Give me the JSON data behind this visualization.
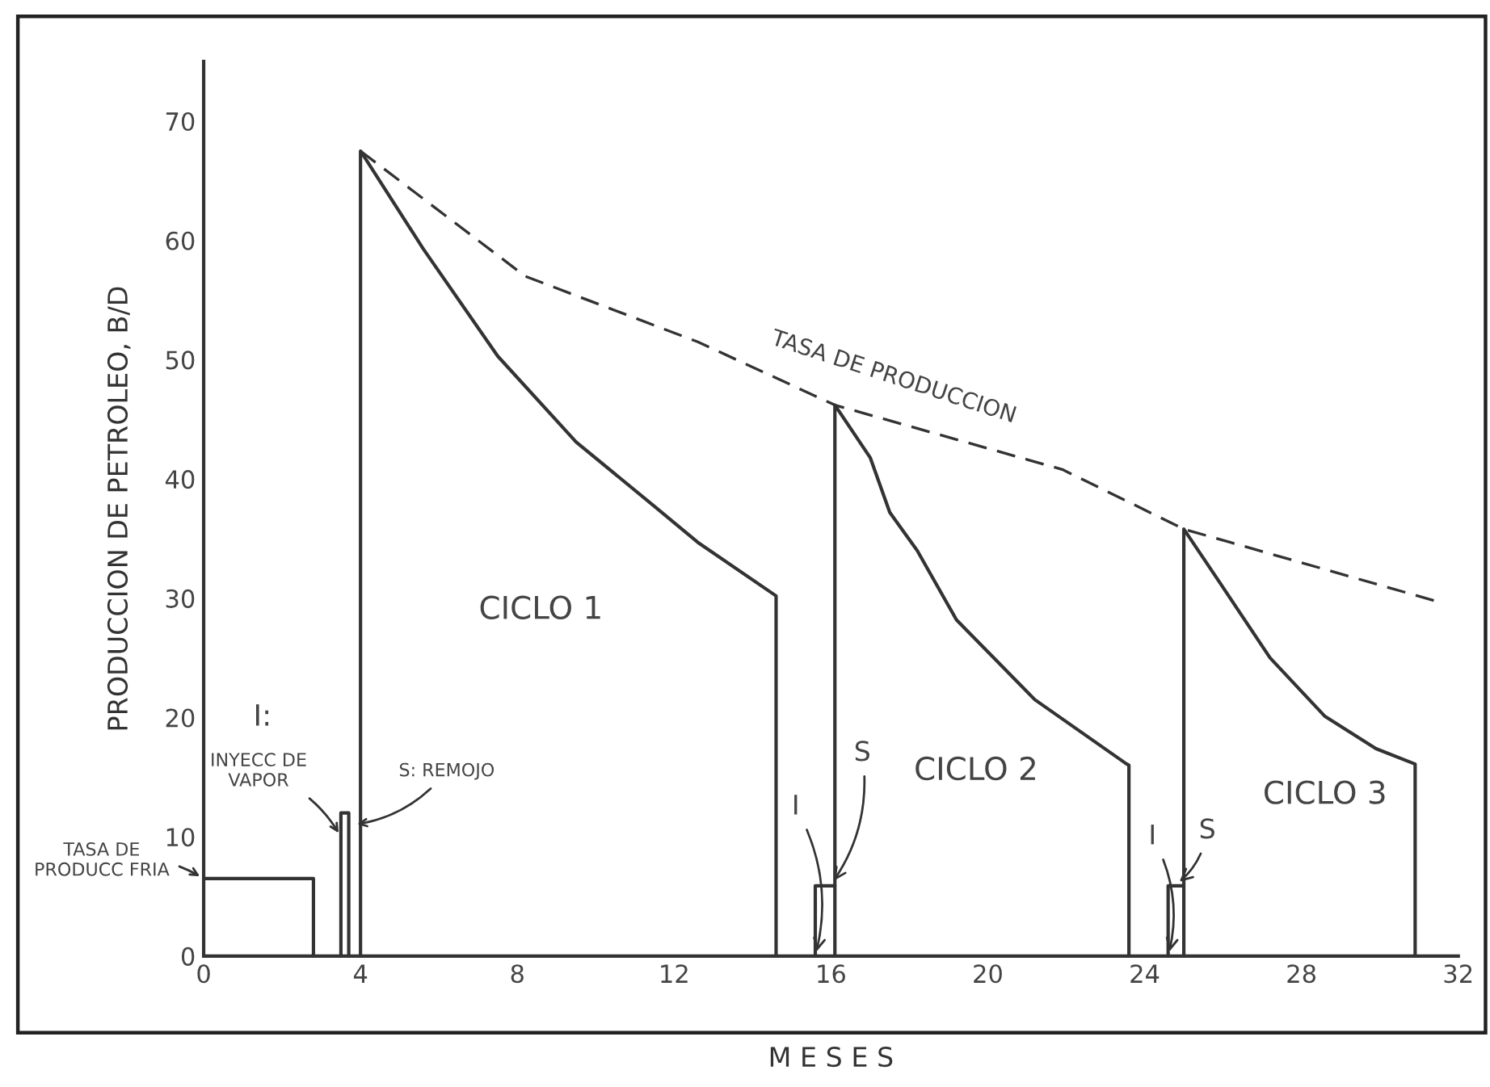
{
  "chart_data": {
    "type": "line",
    "xlabel": "M E S E S",
    "ylabel": "PRODUCCION DE PETROLEO, B/D",
    "xlim": [
      0,
      32
    ],
    "ylim": [
      0,
      75
    ],
    "xticks": [
      0,
      4,
      8,
      12,
      16,
      20,
      24,
      28,
      32
    ],
    "yticks": [
      0,
      10,
      20,
      30,
      40,
      50,
      60,
      70
    ],
    "grid": false,
    "series": [
      {
        "color": "#333333",
        "line_style": "solid",
        "x": [
          0,
          2.8,
          2.8
        ],
        "values": [
          6.5,
          6.5,
          0
        ]
      },
      {
        "color": "#333333",
        "line_style": "solid",
        "x": [
          3.5,
          3.5,
          3.7,
          3.7
        ],
        "values": [
          0,
          12,
          12,
          0
        ]
      },
      {
        "color": "#333333",
        "line_style": "solid",
        "x": [
          4.0,
          4.0,
          5.6,
          7.5,
          9.5,
          11.5,
          12.6,
          14.6,
          14.6
        ],
        "values": [
          0,
          67.5,
          59.3,
          50.3,
          43.1,
          37.7,
          34.7,
          30.2,
          0
        ]
      },
      {
        "color": "#333333",
        "line_style": "solid",
        "x": [
          15.6,
          15.6,
          16.1
        ],
        "values": [
          0,
          5.9,
          5.9
        ]
      },
      {
        "color": "#333333",
        "line_style": "solid",
        "x": [
          16.1,
          16.1,
          17.0,
          17.5,
          18.2,
          19.2,
          21.2,
          23.5,
          23.6,
          23.6
        ],
        "values": [
          0,
          46.2,
          41.8,
          37.2,
          34,
          28.2,
          21.5,
          16.2,
          16,
          0
        ]
      },
      {
        "color": "#333333",
        "line_style": "solid",
        "x": [
          24.6,
          24.6,
          25.0
        ],
        "values": [
          0,
          5.9,
          5.9
        ]
      },
      {
        "color": "#333333",
        "line_style": "solid",
        "x": [
          25.0,
          25.0,
          25.9,
          27.2,
          28.6,
          29.9,
          30.9,
          30.9
        ],
        "values": [
          0,
          35.8,
          31.4,
          25.0,
          20.1,
          17.4,
          16.1,
          0
        ]
      },
      {
        "color": "#333333",
        "line_style": "dashed",
        "x": [
          4.0,
          8.2,
          12.6,
          16.1,
          21.9,
          25.0,
          31.5
        ],
        "values": [
          67.5,
          57,
          51.5,
          46.2,
          40.8,
          35.8,
          29.7
        ]
      }
    ],
    "annotations": [
      "TASA DE PRODUCCION",
      "CICLO 1",
      "CICLO 2",
      "CICLO 3",
      "I:",
      {
        "text": "INYECC DE\nVAPOR",
        "x": 3.5,
        "y": 10
      },
      {
        "text": "S: REMOJO",
        "x": 3.8,
        "y": 11
      },
      {
        "text": "TASA DE\nPRODUCC FRIA",
        "x": 0,
        "y": 6.5
      },
      {
        "text": "I",
        "x": 15.6,
        "y": 0
      },
      {
        "text": "S",
        "x": 16.0,
        "y": 6
      },
      {
        "text": "I",
        "x": 24.6,
        "y": 0
      },
      {
        "text": "S",
        "x": 24.8,
        "y": 6
      }
    ]
  }
}
